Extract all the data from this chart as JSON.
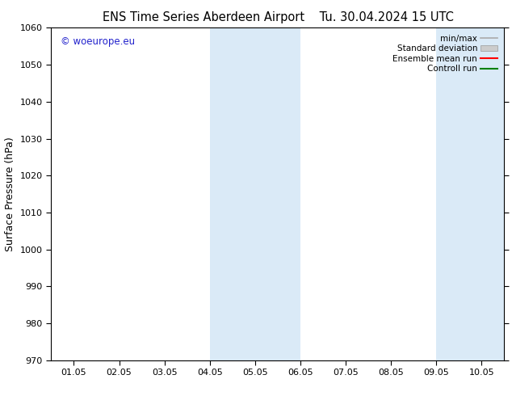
{
  "title_left": "ENS Time Series Aberdeen Airport",
  "title_right": "Tu. 30.04.2024 15 UTC",
  "ylabel": "Surface Pressure (hPa)",
  "ylim": [
    970,
    1060
  ],
  "yticks": [
    970,
    980,
    990,
    1000,
    1010,
    1020,
    1030,
    1040,
    1050,
    1060
  ],
  "xlabels": [
    "01.05",
    "02.05",
    "03.05",
    "04.05",
    "05.05",
    "06.05",
    "07.05",
    "08.05",
    "09.05",
    "10.05"
  ],
  "shaded_bands": [
    {
      "xstart": 3.0,
      "xend": 5.0
    },
    {
      "xstart": 8.0,
      "xend": 9.5
    }
  ],
  "shade_color": "#daeaf7",
  "background_color": "#ffffff",
  "legend_entries": [
    {
      "label": "min/max",
      "color": "#aaaaaa",
      "lw": 1.2,
      "style": "-",
      "type": "line"
    },
    {
      "label": "Standard deviation",
      "color": "#cccccc",
      "lw": 8,
      "style": "-",
      "type": "patch"
    },
    {
      "label": "Ensemble mean run",
      "color": "#ff0000",
      "lw": 1.5,
      "style": "-",
      "type": "line"
    },
    {
      "label": "Controll run",
      "color": "#008000",
      "lw": 1.5,
      "style": "-",
      "type": "line"
    }
  ],
  "copyright_text": "© woeurope.eu",
  "copyright_color": "#2222cc",
  "title_fontsize": 10.5,
  "ylabel_fontsize": 9,
  "tick_fontsize": 8,
  "legend_fontsize": 7.5
}
